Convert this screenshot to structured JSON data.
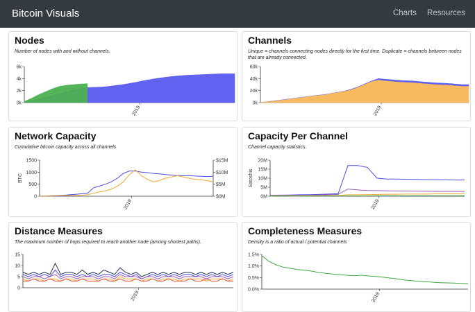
{
  "navbar": {
    "brand": "Bitcoin Visuals",
    "links": [
      "Charts",
      "Resources"
    ]
  },
  "cards": [
    {
      "id": "nodes",
      "title": "Nodes",
      "subtitle": "Number of nodes with and without channels."
    },
    {
      "id": "channels",
      "title": "Channels",
      "subtitle": "Unique = channels connecting nodes directly for the first time. Duplicate = channels between nodes that are already connected."
    },
    {
      "id": "capacity",
      "title": "Network Capacity",
      "subtitle": "Cumulative bitcoin capacity across all channels"
    },
    {
      "id": "perchannel",
      "title": "Capacity Per Channel",
      "subtitle": "Channel capacity statistics."
    },
    {
      "id": "distance",
      "title": "Distance Measures",
      "subtitle": "The maximum number of hops required to reach another node (among shortest paths)."
    },
    {
      "id": "completeness",
      "title": "Completeness Measures",
      "subtitle": "Density is a ratio of actual / potential channels"
    }
  ],
  "chart_data": [
    {
      "type": "area",
      "x_tick": "2019",
      "yticks": [
        "6k",
        "4k",
        "2k",
        "0k"
      ],
      "ylim": [
        0,
        6000
      ],
      "series": [
        {
          "color": "#5a5af0",
          "values": [
            100,
            300,
            600,
            900,
            1200,
            1500,
            1800,
            2100,
            2400,
            2500,
            2550,
            2600,
            2700,
            2850,
            3000,
            3200,
            3400,
            3650,
            3850,
            4050,
            4200,
            4350,
            4450,
            4550,
            4600,
            4650,
            4700,
            4750,
            4800,
            4800,
            4800
          ]
        },
        {
          "color": "#4caf50",
          "values": [
            200,
            700,
            1300,
            1800,
            2300,
            2700,
            2900,
            3000,
            3100,
            3150
          ]
        }
      ]
    },
    {
      "type": "area",
      "x_tick": "2019",
      "yticks": [
        "60k",
        "40k",
        "20k",
        "0k"
      ],
      "ylim": [
        0,
        60000
      ],
      "series": [
        {
          "color": "#5a5af0",
          "values": [
            500,
            1500,
            3000,
            4500,
            6000,
            7500,
            9000,
            10500,
            12000,
            13000,
            15000,
            17000,
            19000,
            22000,
            26000,
            31000,
            36000,
            40000,
            39000,
            38000,
            37000,
            36500,
            36000,
            35000,
            34000,
            33000,
            32500,
            32000,
            31000,
            30000,
            30000
          ]
        },
        {
          "color": "#ffbf55",
          "values": [
            400,
            1200,
            2500,
            4000,
            5500,
            7000,
            8500,
            10000,
            11500,
            12500,
            14500,
            16500,
            18500,
            21000,
            25000,
            30000,
            35000,
            37500,
            36000,
            35000,
            34000,
            33500,
            33000,
            32000,
            31000,
            30000,
            29500,
            29000,
            28000,
            27000,
            27000
          ]
        }
      ]
    },
    {
      "type": "line",
      "x_tick": "2019",
      "yticks": [
        "1500",
        "1000",
        "500",
        "0"
      ],
      "ylabel": "BTC",
      "ylim": [
        0,
        1500
      ],
      "y2ticks": [
        "$15M",
        "$10M",
        "$5M",
        "$0M"
      ],
      "series": [
        {
          "color": "#4a4ae6",
          "values": [
            5,
            10,
            20,
            30,
            40,
            60,
            80,
            100,
            120,
            350,
            420,
            500,
            600,
            750,
            950,
            1050,
            1050,
            1000,
            980,
            950,
            930,
            900,
            880,
            860,
            850,
            860,
            840,
            830,
            820,
            830
          ]
        },
        {
          "color": "#f0a830",
          "values": [
            5,
            8,
            12,
            20,
            25,
            30,
            35,
            40,
            60,
            120,
            180,
            220,
            300,
            420,
            600,
            900,
            1100,
            850,
            700,
            600,
            650,
            750,
            800,
            850,
            800,
            750,
            700,
            680,
            650,
            600
          ]
        }
      ]
    },
    {
      "type": "line",
      "x_tick": "2019",
      "yticks": [
        "20M",
        "15M",
        "10M",
        "5M",
        "0M"
      ],
      "ylabel": "Satoshis",
      "ylim": [
        0,
        20000000
      ],
      "series": [
        {
          "color": "#4a4ae6",
          "values": [
            500000,
            600000,
            700000,
            800000,
            900000,
            1000000,
            1200000,
            1400000,
            17000000,
            17000000,
            16000000,
            10000000,
            9500000,
            9500000,
            9400000,
            9300000,
            9200000,
            9100000,
            9100000,
            9000000,
            9000000
          ]
        },
        {
          "color": "#9b59b6",
          "values": [
            400000,
            450000,
            500000,
            550000,
            600000,
            700000,
            800000,
            1000000,
            4000000,
            3500000,
            3200000,
            3100000,
            3000000,
            2900000,
            2900000,
            2800000,
            2800000,
            2700000,
            2700000,
            2700000,
            2600000
          ]
        },
        {
          "color": "#f0a830",
          "values": [
            200000,
            250000,
            300000,
            300000,
            350000,
            350000,
            400000,
            400000,
            800000,
            800000,
            900000,
            1000000,
            1100000,
            1100000,
            1200000,
            1200000,
            1200000,
            1300000,
            1300000,
            1300000,
            1300000
          ]
        },
        {
          "color": "#4caf50",
          "values": [
            100000,
            100000,
            100000,
            120000,
            120000,
            150000,
            150000,
            150000,
            200000,
            200000,
            200000,
            250000,
            250000,
            250000,
            300000,
            300000,
            300000,
            300000,
            300000,
            300000,
            300000
          ]
        }
      ]
    },
    {
      "type": "line",
      "x_tick": "2019",
      "yticks": [
        "15",
        "10",
        "5",
        "0"
      ],
      "ylim": [
        0,
        15
      ],
      "series": [
        {
          "color": "#223355",
          "values": [
            7,
            6,
            7,
            6,
            7,
            6,
            11,
            6,
            7,
            7,
            6,
            8,
            6,
            7,
            6,
            8,
            7,
            6,
            9,
            7,
            6,
            7,
            5,
            6,
            7,
            6,
            7,
            6,
            7,
            6,
            7,
            7,
            6,
            7,
            6,
            7,
            6,
            7,
            6,
            7
          ]
        },
        {
          "color": "#4a4ae6",
          "values": [
            6,
            5,
            6,
            5,
            6,
            5,
            8,
            5,
            6,
            6,
            5,
            6,
            5,
            6,
            5,
            6,
            6,
            5,
            7,
            6,
            5,
            6,
            4,
            5,
            6,
            5,
            6,
            5,
            6,
            5,
            6,
            6,
            5,
            6,
            5,
            6,
            5,
            6,
            5,
            6
          ]
        },
        {
          "color": "#9b59b6",
          "values": [
            5,
            4,
            5,
            5,
            4,
            5,
            6,
            4,
            5,
            5,
            4,
            5,
            5,
            5,
            4,
            5,
            5,
            4,
            6,
            5,
            5,
            5,
            4,
            5,
            5,
            4,
            5,
            5,
            5,
            4,
            5,
            5,
            5,
            5,
            4,
            5,
            5,
            5,
            4,
            5
          ]
        },
        {
          "color": "#f0a830",
          "values": [
            4,
            3,
            4,
            4,
            3,
            4,
            4,
            3,
            4,
            4,
            3,
            4,
            4,
            4,
            3,
            4,
            4,
            3,
            5,
            4,
            4,
            4,
            3,
            4,
            4,
            3,
            4,
            4,
            4,
            3,
            4,
            4,
            4,
            4,
            3,
            4,
            4,
            4,
            3,
            4
          ]
        },
        {
          "color": "#e0503a",
          "values": [
            3,
            3,
            4,
            3,
            3,
            4,
            3,
            3,
            4,
            3,
            3,
            4,
            3,
            3,
            3,
            4,
            3,
            3,
            4,
            3,
            3,
            4,
            3,
            3,
            4,
            3,
            3,
            4,
            3,
            3,
            3,
            4,
            3,
            3,
            4,
            3,
            3,
            4,
            3,
            3
          ]
        }
      ]
    },
    {
      "type": "line",
      "x_tick": "2019",
      "yticks": [
        "1.5%",
        "1.0%",
        "0.5%",
        "0.0%"
      ],
      "ylim": [
        0,
        1.5
      ],
      "series": [
        {
          "color": "#3fa83f",
          "values": [
            1.45,
            1.2,
            1.05,
            0.95,
            0.9,
            0.85,
            0.82,
            0.78,
            0.72,
            0.68,
            0.65,
            0.62,
            0.6,
            0.58,
            0.6,
            0.57,
            0.55,
            0.52,
            0.48,
            0.44,
            0.4,
            0.37,
            0.34,
            0.32,
            0.3,
            0.28,
            0.27,
            0.26,
            0.25,
            0.24
          ]
        }
      ]
    }
  ]
}
